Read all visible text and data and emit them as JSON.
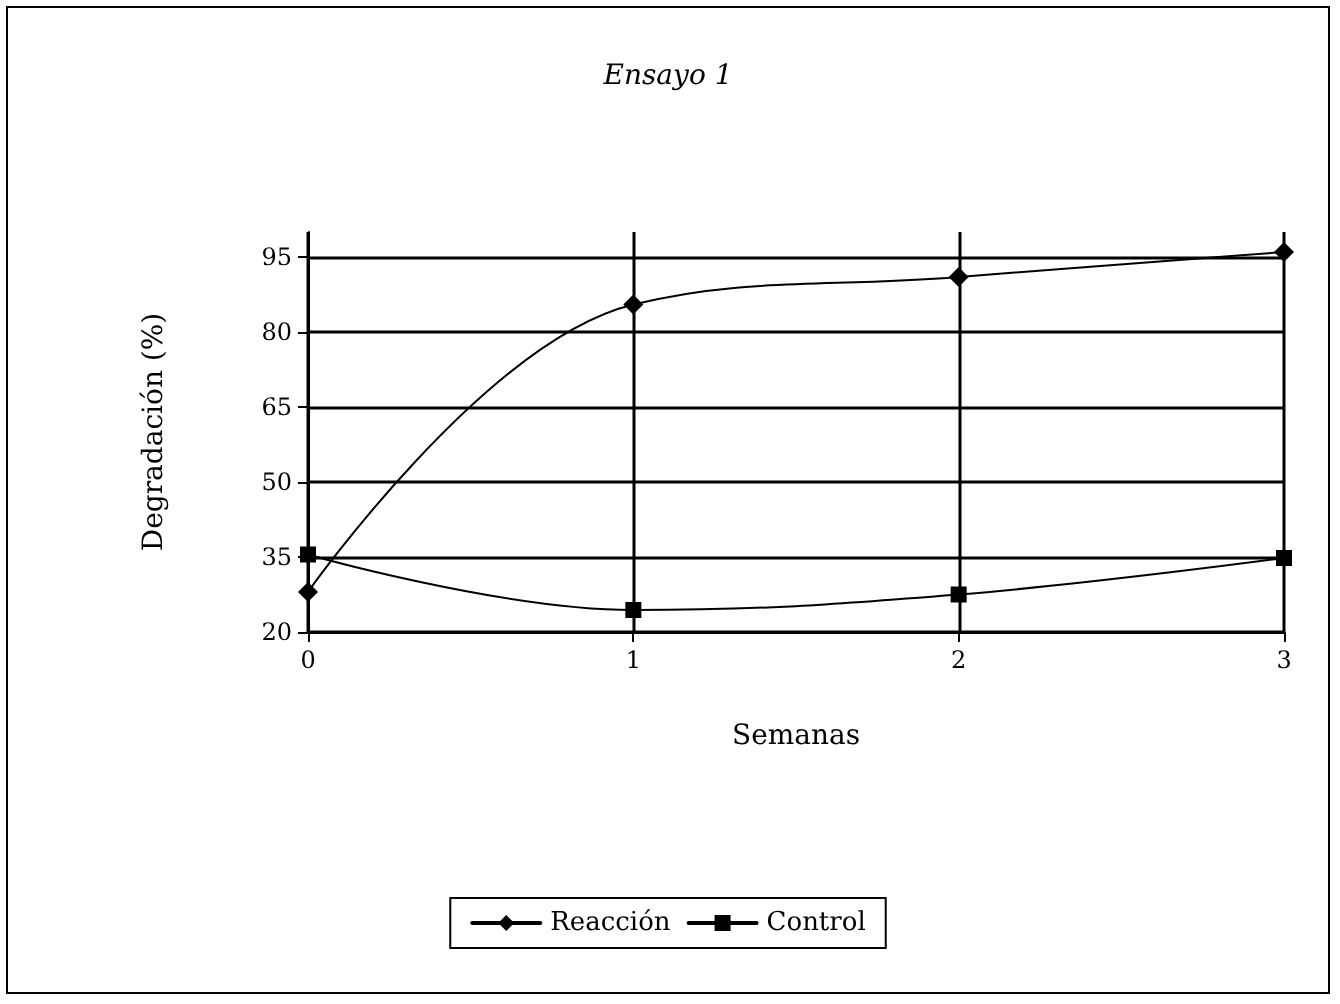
{
  "chart_data": {
    "type": "line",
    "title": "Ensayo 1",
    "xlabel": "Semanas",
    "ylabel": "Degradación (%)",
    "x": [
      0,
      1,
      2,
      3
    ],
    "xlim": [
      0,
      3
    ],
    "xticks": [
      0,
      1,
      2,
      3
    ],
    "ylim": [
      20,
      100
    ],
    "yticks": [
      20,
      35,
      50,
      65,
      80,
      95
    ],
    "series": [
      {
        "name": "Reacción",
        "color": "#000000",
        "marker": "diamond",
        "values": [
          28,
          85.5,
          91,
          96
        ]
      },
      {
        "name": "Control",
        "color": "#000000",
        "marker": "square",
        "values": [
          35.5,
          24.4,
          27.5,
          34.8
        ]
      }
    ],
    "grid": true,
    "legend": "bottom",
    "line_style": "solid"
  }
}
